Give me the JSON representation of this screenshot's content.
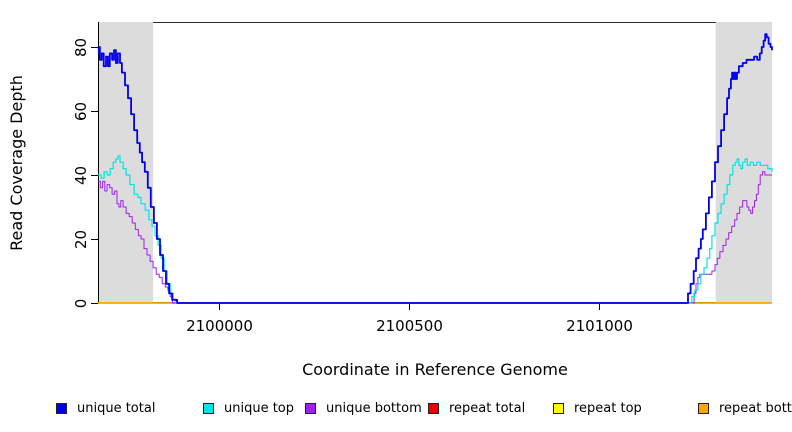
{
  "chart_data": {
    "type": "line",
    "title": "",
    "xlabel": "Coordinate in Reference Genome",
    "ylabel": "Read Coverage Depth",
    "xlim": [
      2099682,
      2101455
    ],
    "ylim": [
      0,
      87.8
    ],
    "grid": false,
    "legend_position": "bottom",
    "axis_color": "#000000",
    "shade_color": "#dcdcdc",
    "x_ticks": [
      {
        "value": 2100000,
        "label": "2100000"
      },
      {
        "value": 2100500,
        "label": "2100500"
      },
      {
        "value": 2101000,
        "label": "2101000"
      }
    ],
    "y_ticks": [
      {
        "value": 0,
        "label": "0"
      },
      {
        "value": 20,
        "label": "20"
      },
      {
        "value": 40,
        "label": "40"
      },
      {
        "value": 60,
        "label": "60"
      },
      {
        "value": 80,
        "label": "80"
      }
    ],
    "shaded_regions": [
      {
        "from": 2099682,
        "to": 2099827
      },
      {
        "from": 2101307,
        "to": 2101455
      }
    ],
    "draw_order": [
      "repeat total",
      "repeat top",
      "repeat bottom",
      "unique bottom",
      "unique top",
      "unique total"
    ],
    "series": [
      {
        "name": "unique total",
        "color": "#0000EE",
        "lwd": 1.8,
        "points": [
          [
            2099682,
            78
          ],
          [
            2099684,
            80
          ],
          [
            2099687,
            76
          ],
          [
            2099692,
            78
          ],
          [
            2099697,
            74
          ],
          [
            2099703,
            77
          ],
          [
            2099708,
            74
          ],
          [
            2099713,
            78
          ],
          [
            2099719,
            76
          ],
          [
            2099724,
            79
          ],
          [
            2099729,
            75
          ],
          [
            2099734,
            78
          ],
          [
            2099740,
            75
          ],
          [
            2099745,
            72
          ],
          [
            2099753,
            68
          ],
          [
            2099761,
            64
          ],
          [
            2099769,
            59
          ],
          [
            2099777,
            54
          ],
          [
            2099785,
            50
          ],
          [
            2099792,
            47
          ],
          [
            2099798,
            44
          ],
          [
            2099805,
            41
          ],
          [
            2099813,
            36
          ],
          [
            2099821,
            30
          ],
          [
            2099829,
            25
          ],
          [
            2099837,
            20
          ],
          [
            2099845,
            15
          ],
          [
            2099853,
            10
          ],
          [
            2099861,
            6
          ],
          [
            2099869,
            3
          ],
          [
            2099877,
            1
          ],
          [
            2099890,
            0
          ],
          [
            2101228,
            0
          ],
          [
            2101234,
            3
          ],
          [
            2101241,
            6
          ],
          [
            2101249,
            10
          ],
          [
            2101255,
            14
          ],
          [
            2101262,
            17
          ],
          [
            2101268,
            20
          ],
          [
            2101273,
            23
          ],
          [
            2101281,
            28
          ],
          [
            2101289,
            33
          ],
          [
            2101297,
            38
          ],
          [
            2101305,
            44
          ],
          [
            2101313,
            49
          ],
          [
            2101321,
            54
          ],
          [
            2101329,
            59
          ],
          [
            2101337,
            64
          ],
          [
            2101342,
            67
          ],
          [
            2101347,
            70
          ],
          [
            2101350,
            72
          ],
          [
            2101353,
            70
          ],
          [
            2101356,
            72
          ],
          [
            2101359,
            70
          ],
          [
            2101363,
            72
          ],
          [
            2101368,
            74
          ],
          [
            2101378,
            75
          ],
          [
            2101388,
            76
          ],
          [
            2101398,
            76
          ],
          [
            2101408,
            77
          ],
          [
            2101416,
            76
          ],
          [
            2101423,
            78
          ],
          [
            2101428,
            80
          ],
          [
            2101433,
            82
          ],
          [
            2101437,
            84
          ],
          [
            2101441,
            83
          ],
          [
            2101446,
            81
          ],
          [
            2101451,
            80
          ],
          [
            2101455,
            79
          ]
        ]
      },
      {
        "name": "unique top",
        "color": "#00E5E5",
        "lwd": 1.2,
        "points": [
          [
            2099682,
            40
          ],
          [
            2099690,
            39
          ],
          [
            2099698,
            41
          ],
          [
            2099706,
            40
          ],
          [
            2099714,
            42
          ],
          [
            2099722,
            44
          ],
          [
            2099729,
            45
          ],
          [
            2099735,
            46
          ],
          [
            2099740,
            44
          ],
          [
            2099748,
            42
          ],
          [
            2099756,
            40
          ],
          [
            2099766,
            37
          ],
          [
            2099777,
            34
          ],
          [
            2099787,
            33
          ],
          [
            2099795,
            31
          ],
          [
            2099806,
            29
          ],
          [
            2099816,
            26
          ],
          [
            2099824,
            24
          ],
          [
            2099832,
            21
          ],
          [
            2099840,
            18
          ],
          [
            2099848,
            14
          ],
          [
            2099856,
            10
          ],
          [
            2099864,
            6
          ],
          [
            2099872,
            3
          ],
          [
            2099880,
            1
          ],
          [
            2099887,
            0
          ],
          [
            2101239,
            0
          ],
          [
            2101244,
            2
          ],
          [
            2101252,
            4
          ],
          [
            2101260,
            6
          ],
          [
            2101268,
            9
          ],
          [
            2101276,
            11
          ],
          [
            2101284,
            14
          ],
          [
            2101291,
            17
          ],
          [
            2101297,
            21
          ],
          [
            2101305,
            25
          ],
          [
            2101313,
            28
          ],
          [
            2101321,
            31
          ],
          [
            2101329,
            34
          ],
          [
            2101337,
            37
          ],
          [
            2101344,
            40
          ],
          [
            2101352,
            43
          ],
          [
            2101358,
            44
          ],
          [
            2101363,
            45
          ],
          [
            2101368,
            43
          ],
          [
            2101373,
            42
          ],
          [
            2101378,
            44
          ],
          [
            2101384,
            45
          ],
          [
            2101390,
            43
          ],
          [
            2101398,
            44
          ],
          [
            2101406,
            43
          ],
          [
            2101415,
            44
          ],
          [
            2101424,
            43
          ],
          [
            2101434,
            43
          ],
          [
            2101444,
            42
          ],
          [
            2101455,
            41
          ]
        ]
      },
      {
        "name": "unique bottom",
        "color": "#A020F0",
        "lwd": 1.0,
        "points": [
          [
            2099682,
            38
          ],
          [
            2099688,
            36
          ],
          [
            2099694,
            38
          ],
          [
            2099700,
            35
          ],
          [
            2099706,
            37
          ],
          [
            2099713,
            36
          ],
          [
            2099719,
            34
          ],
          [
            2099726,
            35
          ],
          [
            2099732,
            31
          ],
          [
            2099737,
            30
          ],
          [
            2099742,
            32
          ],
          [
            2099748,
            30
          ],
          [
            2099756,
            28
          ],
          [
            2099764,
            27
          ],
          [
            2099772,
            25
          ],
          [
            2099780,
            23
          ],
          [
            2099788,
            21
          ],
          [
            2099795,
            20
          ],
          [
            2099803,
            17
          ],
          [
            2099811,
            15
          ],
          [
            2099819,
            13
          ],
          [
            2099827,
            11
          ],
          [
            2099835,
            9
          ],
          [
            2099843,
            8
          ],
          [
            2099851,
            6
          ],
          [
            2099859,
            5
          ],
          [
            2099866,
            4
          ],
          [
            2099872,
            2
          ],
          [
            2099878,
            0
          ],
          [
            2101245,
            0
          ],
          [
            2101250,
            3
          ],
          [
            2101255,
            6
          ],
          [
            2101260,
            8
          ],
          [
            2101265,
            9
          ],
          [
            2101273,
            9
          ],
          [
            2101281,
            9
          ],
          [
            2101289,
            9
          ],
          [
            2101297,
            10
          ],
          [
            2101305,
            12
          ],
          [
            2101311,
            14
          ],
          [
            2101318,
            16
          ],
          [
            2101326,
            18
          ],
          [
            2101334,
            20
          ],
          [
            2101341,
            22
          ],
          [
            2101349,
            24
          ],
          [
            2101357,
            26
          ],
          [
            2101363,
            28
          ],
          [
            2101370,
            30
          ],
          [
            2101378,
            32
          ],
          [
            2101384,
            32
          ],
          [
            2101389,
            30
          ],
          [
            2101394,
            29
          ],
          [
            2101399,
            28
          ],
          [
            2101404,
            30
          ],
          [
            2101409,
            32
          ],
          [
            2101414,
            34
          ],
          [
            2101419,
            37
          ],
          [
            2101424,
            40
          ],
          [
            2101430,
            41
          ],
          [
            2101436,
            40
          ],
          [
            2101444,
            40
          ],
          [
            2101455,
            40
          ]
        ]
      },
      {
        "name": "repeat total",
        "color": "#EE0000",
        "lwd": 1.2,
        "points": [
          [
            2099682,
            0
          ],
          [
            2101455,
            0
          ]
        ]
      },
      {
        "name": "repeat top",
        "color": "#FFFF00",
        "lwd": 1.2,
        "points": [
          [
            2099682,
            0
          ],
          [
            2101455,
            0
          ]
        ]
      },
      {
        "name": "repeat bottom",
        "color": "#FFA500",
        "lwd": 1.5,
        "points": [
          [
            2099682,
            0
          ],
          [
            2101455,
            0
          ]
        ]
      }
    ]
  }
}
